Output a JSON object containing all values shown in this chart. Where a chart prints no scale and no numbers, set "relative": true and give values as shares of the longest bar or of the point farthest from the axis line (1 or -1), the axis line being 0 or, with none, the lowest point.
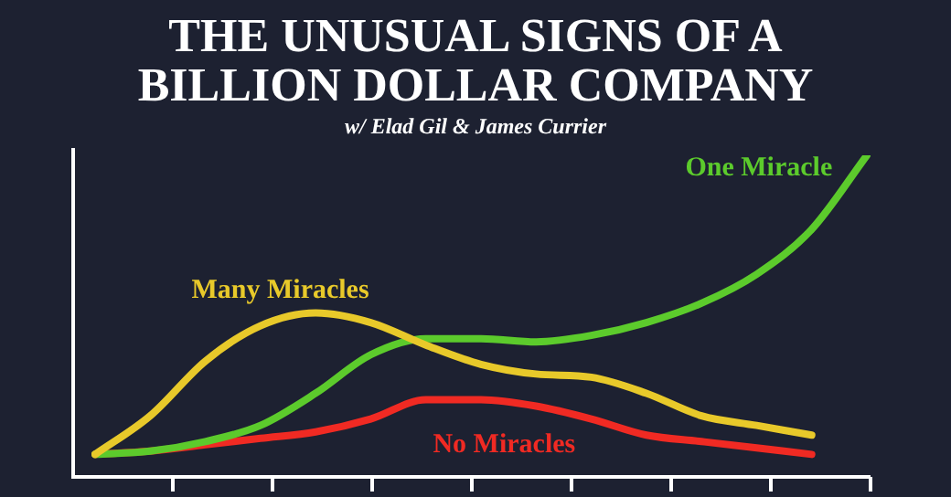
{
  "chart_data": {
    "type": "line",
    "title": "THE UNUSUAL SIGNS OF A BILLION DOLLAR COMPANY",
    "subtitle": "w/ Elad Gil & James Currier",
    "relative": true,
    "legend": false,
    "marker": "none",
    "line_style": "solid",
    "categories": [
      null,
      null,
      null,
      null,
      null,
      null,
      null,
      null,
      null,
      null,
      null,
      null,
      null,
      null,
      null
    ],
    "series": [
      {
        "name": "Many Miracles",
        "color": "#e8c92a",
        "values": [
          0.07,
          0.19,
          0.36,
          0.47,
          0.51,
          0.48,
          0.41,
          0.35,
          0.32,
          0.31,
          0.26,
          0.19,
          0.16,
          0.13,
          null
        ]
      },
      {
        "name": "One Miracle",
        "color": "#5ccb2c",
        "values": [
          0.07,
          0.08,
          0.11,
          0.16,
          0.26,
          0.38,
          0.43,
          0.43,
          0.42,
          0.44,
          0.48,
          0.54,
          0.63,
          0.77,
          1
        ]
      },
      {
        "name": "No Miracles",
        "color": "#f02a23",
        "values": [
          0.07,
          0.08,
          0.1,
          0.12,
          0.14,
          0.18,
          0.24,
          0.24,
          0.22,
          0.18,
          0.13,
          0.11,
          0.09,
          0.07,
          null
        ]
      }
    ]
  }
}
